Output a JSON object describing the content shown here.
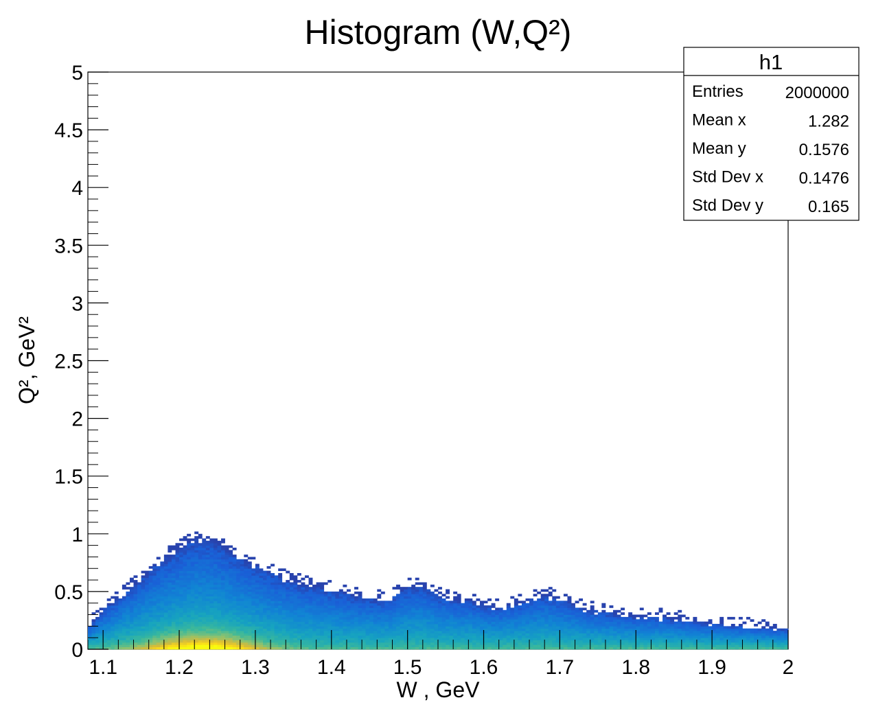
{
  "chart_data": {
    "type": "heatmap",
    "title": "Histogram (W,Q²)",
    "xlabel": "W , GeV",
    "ylabel": "Q², GeV²",
    "xlim": [
      1.08,
      2.0
    ],
    "ylim": [
      0,
      5
    ],
    "x_ticks": [
      "1.1",
      "1.2",
      "1.3",
      "1.4",
      "1.5",
      "1.6",
      "1.7",
      "1.8",
      "1.9",
      "2"
    ],
    "y_ticks": [
      "0",
      "0.5",
      "1",
      "1.5",
      "2",
      "2.5",
      "3",
      "3.5",
      "4",
      "4.5",
      "5"
    ],
    "colormap": [
      "#352a87",
      "#1a5fd7",
      "#1184d4",
      "#17a4bf",
      "#3ab89c",
      "#8ec26f",
      "#d4bb3b",
      "#f9d71c",
      "#f9fb0e"
    ],
    "density_profile": {
      "w": [
        1.08,
        1.1,
        1.12,
        1.14,
        1.16,
        1.18,
        1.2,
        1.22,
        1.24,
        1.26,
        1.28,
        1.3,
        1.32,
        1.34,
        1.36,
        1.38,
        1.4,
        1.42,
        1.44,
        1.46,
        1.48,
        1.5,
        1.52,
        1.54,
        1.56,
        1.58,
        1.6,
        1.62,
        1.64,
        1.66,
        1.68,
        1.7,
        1.72,
        1.74,
        1.76,
        1.78,
        1.8,
        1.82,
        1.84,
        1.86,
        1.88,
        1.9,
        1.92,
        1.94,
        1.96,
        1.98,
        2.0
      ],
      "q2_max": [
        0.18,
        0.34,
        0.45,
        0.56,
        0.67,
        0.78,
        0.88,
        0.95,
        0.96,
        0.88,
        0.79,
        0.72,
        0.66,
        0.61,
        0.57,
        0.54,
        0.51,
        0.48,
        0.45,
        0.43,
        0.45,
        0.53,
        0.55,
        0.46,
        0.43,
        0.42,
        0.39,
        0.36,
        0.39,
        0.43,
        0.47,
        0.43,
        0.38,
        0.34,
        0.32,
        0.3,
        0.28,
        0.28,
        0.27,
        0.25,
        0.24,
        0.22,
        0.21,
        0.2,
        0.19,
        0.18,
        0.17
      ]
    }
  },
  "stats": {
    "name": "h1",
    "rows": [
      {
        "label": "Entries",
        "value": "2000000"
      },
      {
        "label": "Mean x",
        "value": "1.282"
      },
      {
        "label": "Mean y",
        "value": "0.1576"
      },
      {
        "label": "Std Dev x",
        "value": "0.1476"
      },
      {
        "label": "Std Dev y",
        "value": "0.165"
      }
    ]
  }
}
